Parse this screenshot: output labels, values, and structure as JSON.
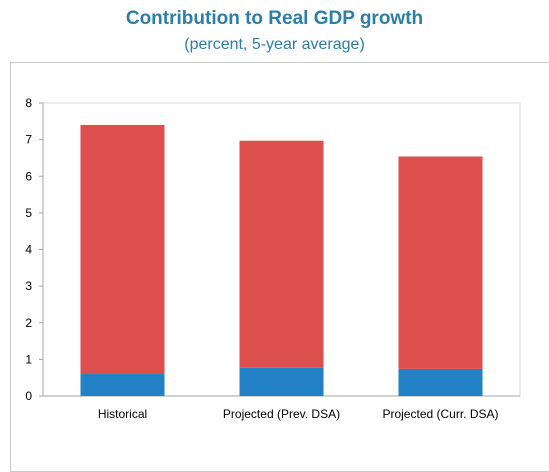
{
  "title": "Contribution to Real GDP growth",
  "subtitle": "(percent, 5-year average)",
  "colors": {
    "bottom": "#2281c4",
    "top": "#dd4f4c",
    "axis": "#a6a6a6",
    "text": "#000000"
  },
  "chart_data": {
    "type": "bar",
    "stacked": true,
    "categories": [
      "Historical",
      "Projected (Prev. DSA)",
      "Projected (Curr. DSA)"
    ],
    "series": [
      {
        "values": [
          0.6,
          0.77,
          0.74
        ]
      },
      {
        "values": [
          6.8,
          6.2,
          5.8
        ]
      }
    ],
    "ylim": [
      0,
      8
    ],
    "yticks": [
      "0",
      "1",
      "2",
      "3",
      "4",
      "5",
      "6",
      "7",
      "8"
    ],
    "grid": false,
    "legend": "none"
  }
}
